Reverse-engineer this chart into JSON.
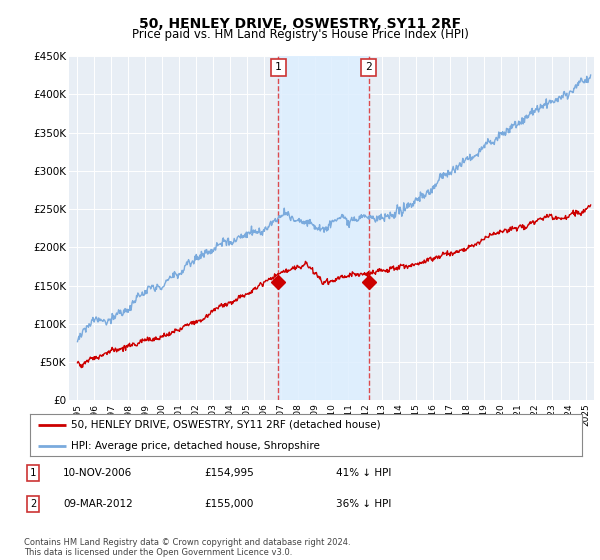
{
  "title": "50, HENLEY DRIVE, OSWESTRY, SY11 2RF",
  "subtitle": "Price paid vs. HM Land Registry's House Price Index (HPI)",
  "ylim": [
    0,
    450000
  ],
  "yticks": [
    0,
    50000,
    100000,
    150000,
    200000,
    250000,
    300000,
    350000,
    400000,
    450000
  ],
  "xlim_start": 1994.5,
  "xlim_end": 2025.5,
  "transaction1_x": 2006.86,
  "transaction2_x": 2012.19,
  "transaction1_price": 154995,
  "transaction2_price": 155000,
  "shade_color": "#ddeeff",
  "vline_color": "#dd2222",
  "hpi_line_color": "#7aaadd",
  "price_line_color": "#cc0000",
  "legend_entries": [
    "50, HENLEY DRIVE, OSWESTRY, SY11 2RF (detached house)",
    "HPI: Average price, detached house, Shropshire"
  ],
  "table_rows": [
    {
      "num": "1",
      "date": "10-NOV-2006",
      "price": "£154,995",
      "note": "41% ↓ HPI"
    },
    {
      "num": "2",
      "date": "09-MAR-2012",
      "price": "£155,000",
      "note": "36% ↓ HPI"
    }
  ],
  "footer": "Contains HM Land Registry data © Crown copyright and database right 2024.\nThis data is licensed under the Open Government Licence v3.0.",
  "background_color": "#ffffff",
  "plot_bg_color": "#e8eef5"
}
